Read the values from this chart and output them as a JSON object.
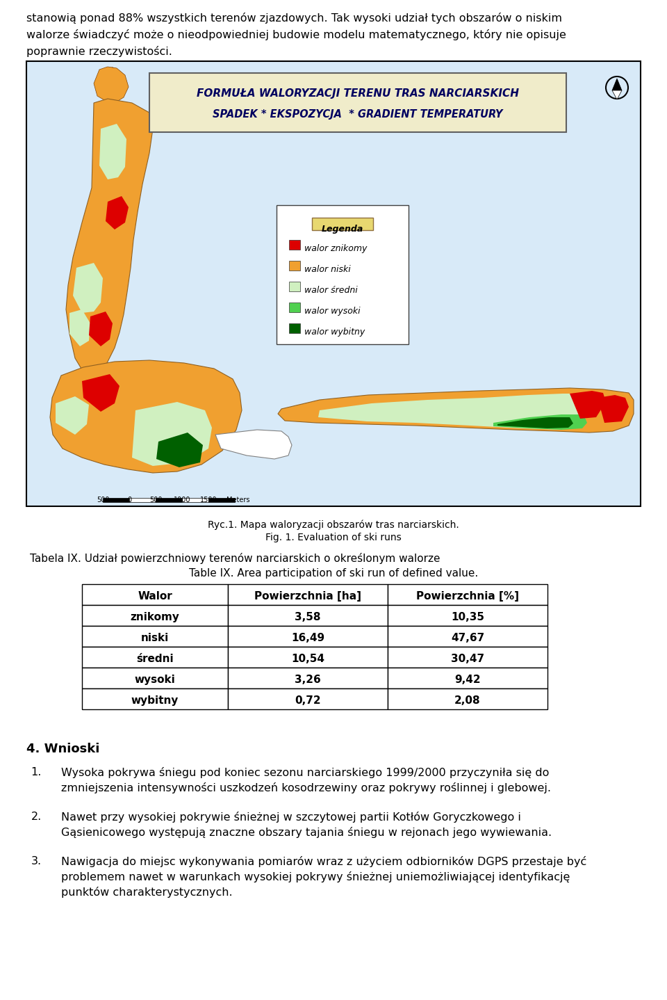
{
  "intro_text_lines": [
    "stanowią ponad 88% wszystkich terenów zjazdowych. Tak wysoki udział tych obszarów o niskim",
    "walorze świadczyć może o nieodpowiedniej budowie modelu matematycznego, który nie opisuje",
    "poprawnie rzeczywistości."
  ],
  "map_border_color": "#000000",
  "map_title_line1": "FORMUŁA WALORYZACJI TERENU TRAS NARCIARSKICH",
  "map_title_line2": "SPADEK * EKSPOZYCJA  * GRADIENT TEMPERATURY",
  "map_title_bg": "#f0ecca",
  "map_title_border": "#707070",
  "map_bg_color": "#d8eaf8",
  "legend_title": "Legenda",
  "legend_items": [
    {
      "label": "walor znikomy",
      "color": "#dd0000"
    },
    {
      "label": "walor niski",
      "color": "#f0a030"
    },
    {
      "label": "walor średni",
      "color": "#d0f0c0"
    },
    {
      "label": "walor wysoki",
      "color": "#50d050"
    },
    {
      "label": "walor wybitny",
      "color": "#006000"
    }
  ],
  "caption_line1": "Ryc.1. Mapa waloryzacji obszarów tras narciarskich.",
  "caption_line2": "Fig. 1. Evaluation of ski runs",
  "table_title_pl": "Tabela IX. Udział powierzchniowy terenów narciarskich o określonym walorze",
  "table_title_en": "Table IX. Area participation of ski run of defined value.",
  "table_headers": [
    "Walor",
    "Powierzchnia [ha]",
    "Powierzchnia [%]"
  ],
  "table_rows": [
    [
      "znikomy",
      "3,58",
      "10,35"
    ],
    [
      "niski",
      "16,49",
      "47,67"
    ],
    [
      "średni",
      "10,54",
      "30,47"
    ],
    [
      "wysoki",
      "3,26",
      "9,42"
    ],
    [
      "wybitny",
      "0,72",
      "2,08"
    ]
  ],
  "section_header": "4. Wnioski",
  "numbered_items": [
    [
      "Wysoka pokrywa śniegu pod koniec sezonu narciarskiego 1999/2000 przyczyniła się do",
      "zmniejszenia intensywności uszkodzeń kosodrzewiny oraz pokrywy roślinnej i glebowej."
    ],
    [
      "Nawet przy wysokiej pokrywie śnieżnej w szczytowej partii Kotłów Goryczkowego i",
      "Gąsienicowego występują znaczne obszary tajania śniegu w rejonach jego wywiewania."
    ],
    [
      "Nawigacja do miejsc wykonywania pomiarów wraz z użyciem odbiorników DGPS przestaje być",
      "problemem nawet w warunkach wysokiej pokrywy śnieżnej uniemożliwiającej identyfikację",
      "punktów charakterystycznych."
    ]
  ],
  "bg_color": "#ffffff",
  "text_color": "#000000"
}
